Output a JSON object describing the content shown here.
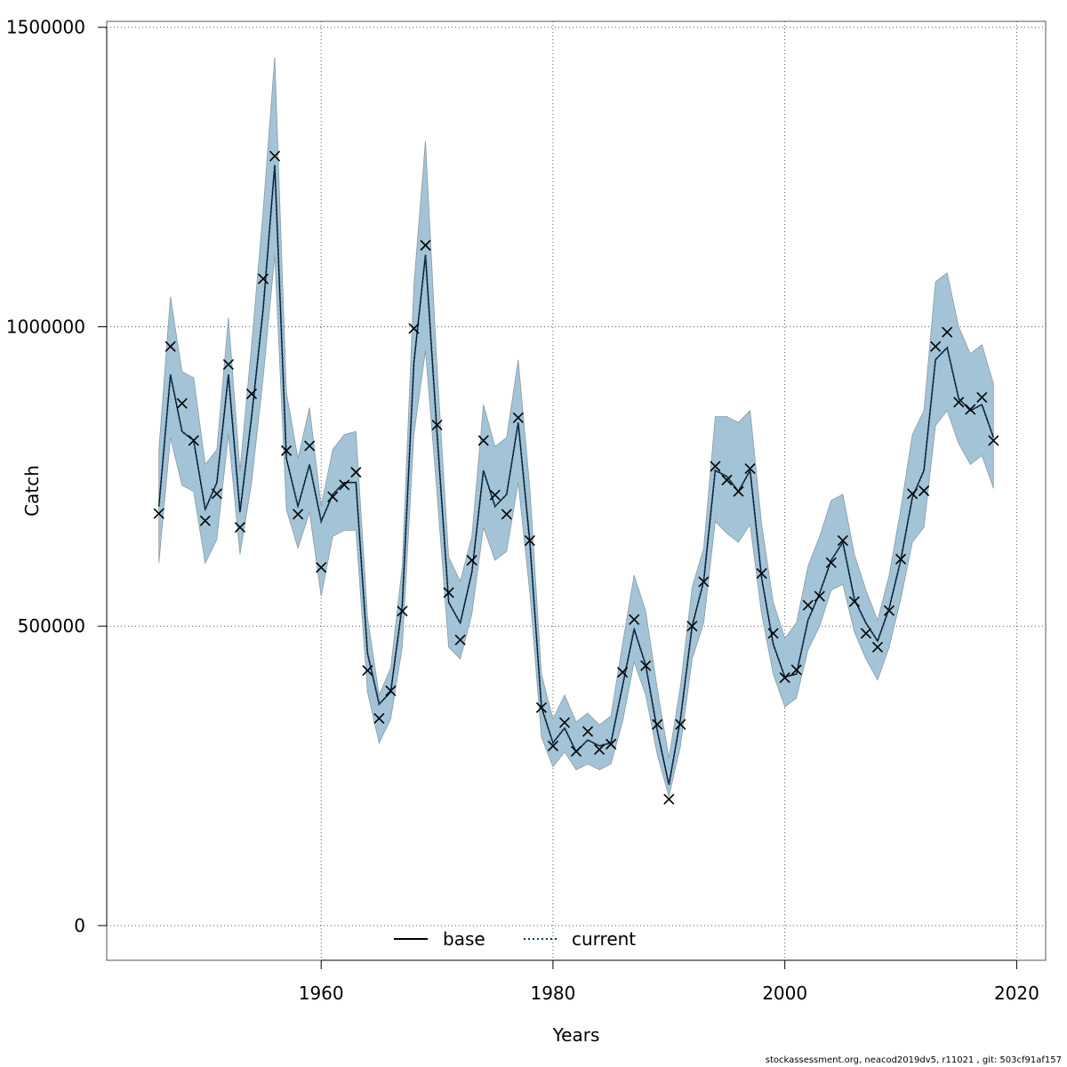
{
  "chart_data": {
    "type": "line",
    "xlabel": "Years",
    "ylabel": "Catch",
    "xlim": [
      1941.5,
      2022.5
    ],
    "ylim": [
      -58000,
      1510000
    ],
    "x_ticks": [
      1960,
      1980,
      2000,
      2020
    ],
    "y_ticks": [
      0,
      500000,
      1000000,
      1500000
    ],
    "x_tick_labels": [
      "1960",
      "1980",
      "2000",
      "2020"
    ],
    "y_tick_labels": [
      "0",
      "500000",
      "1000000",
      "1500000"
    ],
    "grid": true,
    "legend_position": "bottom",
    "colors": {
      "band": "#a3c4d6",
      "band_edge": "#8a9aa5",
      "current_line": "#0d3b66",
      "base_line": "#000000",
      "marker": "#000000"
    },
    "legend": [
      {
        "label": "base",
        "style": "solid"
      },
      {
        "label": "current",
        "style": "dotted"
      }
    ],
    "years": [
      1946,
      1947,
      1948,
      1949,
      1950,
      1951,
      1952,
      1953,
      1954,
      1955,
      1956,
      1957,
      1958,
      1959,
      1960,
      1961,
      1962,
      1963,
      1964,
      1965,
      1966,
      1967,
      1968,
      1969,
      1970,
      1971,
      1972,
      1973,
      1974,
      1975,
      1976,
      1977,
      1978,
      1979,
      1980,
      1981,
      1982,
      1983,
      1984,
      1985,
      1986,
      1987,
      1988,
      1989,
      1990,
      1991,
      1992,
      1993,
      1994,
      1995,
      1996,
      1997,
      1998,
      1999,
      2000,
      2001,
      2002,
      2003,
      2004,
      2005,
      2006,
      2007,
      2008,
      2009,
      2010,
      2011,
      2012,
      2013,
      2014,
      2015,
      2016,
      2017,
      2018
    ],
    "series": [
      {
        "name": "current",
        "values": [
          700000,
          920000,
          825000,
          810000,
          695000,
          740000,
          920000,
          690000,
          850000,
          1030000,
          1270000,
          780000,
          700000,
          770000,
          675000,
          720000,
          740000,
          740000,
          455000,
          370000,
          390000,
          535000,
          940000,
          1120000,
          820000,
          540000,
          505000,
          590000,
          760000,
          700000,
          720000,
          840000,
          640000,
          365000,
          305000,
          330000,
          290000,
          310000,
          300000,
          305000,
          400000,
          495000,
          435000,
          325000,
          235000,
          345000,
          500000,
          575000,
          760000,
          750000,
          725000,
          760000,
          580000,
          470000,
          415000,
          420000,
          510000,
          555000,
          610000,
          640000,
          545000,
          505000,
          475000,
          530000,
          610000,
          715000,
          760000,
          945000,
          965000,
          880000,
          860000,
          870000,
          815000
        ]
      },
      {
        "name": "band_upper",
        "values": [
          795000,
          1050000,
          925000,
          915000,
          770000,
          795000,
          1015000,
          760000,
          970000,
          1195000,
          1450000,
          890000,
          780000,
          865000,
          700000,
          795000,
          820000,
          825000,
          515000,
          385000,
          430000,
          600000,
          1070000,
          1310000,
          930000,
          615000,
          575000,
          650000,
          870000,
          800000,
          815000,
          945000,
          730000,
          420000,
          345000,
          385000,
          340000,
          355000,
          335000,
          350000,
          470000,
          585000,
          525000,
          395000,
          280000,
          400000,
          565000,
          630000,
          850000,
          850000,
          840000,
          860000,
          670000,
          540000,
          480000,
          505000,
          600000,
          650000,
          710000,
          720000,
          620000,
          560000,
          510000,
          585000,
          695000,
          820000,
          860000,
          1075000,
          1090000,
          1000000,
          955000,
          970000,
          905000
        ]
      },
      {
        "name": "band_lower",
        "values": [
          605000,
          815000,
          735000,
          725000,
          605000,
          645000,
          820000,
          620000,
          740000,
          915000,
          1120000,
          695000,
          630000,
          690000,
          550000,
          650000,
          660000,
          660000,
          390000,
          305000,
          345000,
          465000,
          820000,
          960000,
          720000,
          465000,
          445000,
          520000,
          665000,
          610000,
          625000,
          740000,
          555000,
          315000,
          265000,
          290000,
          260000,
          270000,
          260000,
          270000,
          340000,
          440000,
          385000,
          285000,
          215000,
          300000,
          445000,
          505000,
          675000,
          655000,
          640000,
          670000,
          520000,
          420000,
          365000,
          380000,
          460000,
          500000,
          560000,
          570000,
          490000,
          445000,
          410000,
          465000,
          545000,
          640000,
          665000,
          835000,
          860000,
          805000,
          770000,
          785000,
          730000
        ]
      },
      {
        "name": "points",
        "values": [
          688000,
          967000,
          872000,
          810000,
          676000,
          721000,
          937000,
          665000,
          888000,
          1080000,
          1285000,
          793000,
          687000,
          801000,
          598000,
          716000,
          736000,
          757000,
          426000,
          346000,
          392000,
          525000,
          997000,
          1136000,
          836000,
          556000,
          477000,
          610000,
          810000,
          719000,
          687000,
          848000,
          643000,
          364000,
          300000,
          339000,
          291000,
          324000,
          294000,
          303000,
          423000,
          511000,
          434000,
          336000,
          211000,
          336000,
          500000,
          574000,
          767000,
          744000,
          725000,
          763000,
          588000,
          488000,
          414000,
          427000,
          535000,
          550000,
          606000,
          643000,
          541000,
          488000,
          465000,
          526000,
          612000,
          721000,
          726000,
          967000,
          991000,
          874000,
          862000,
          882000,
          810000
        ]
      }
    ]
  },
  "footer_text": "stockassessment.org, neacod2019dv5, r11021 , git: 503cf91af157"
}
